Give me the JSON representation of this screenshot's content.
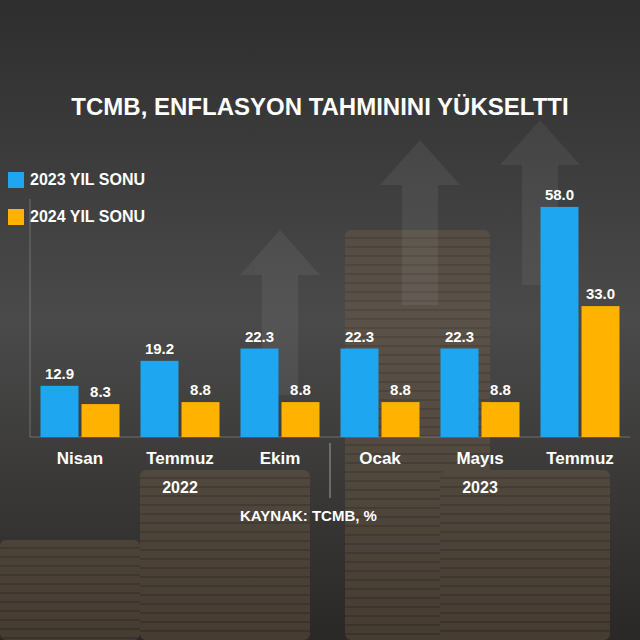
{
  "chart_data": {
    "type": "bar",
    "title": "TCMB, ENFLASYON TAHMININI YÜKSELTTI",
    "source": "KAYNAK: TCMB, %",
    "categories": [
      "Nisan",
      "Temmuz",
      "Ekim",
      "Ocak",
      "Mayıs",
      "Temmuz"
    ],
    "x_groups": [
      {
        "label": "2022",
        "size": 3
      },
      {
        "label": "2023",
        "size": 3
      }
    ],
    "series": [
      {
        "name": "2023 YIL SONU",
        "color": "#1ea7f0",
        "values": [
          12.9,
          19.2,
          22.3,
          22.3,
          22.3,
          58
        ],
        "value_labels": [
          "12.9",
          "19.2",
          "22.3",
          "22.3",
          "22.3",
          "58.0"
        ]
      },
      {
        "name": "2024 YIL SONU",
        "color": "#ffb300",
        "values": [
          8.3,
          8.8,
          8.8,
          8.8,
          8.8,
          33
        ],
        "value_labels": [
          "8.3",
          "8.8",
          "8.8",
          "8.8",
          "8.8",
          "33.0"
        ]
      }
    ],
    "ylim": [
      0,
      60
    ],
    "yticks": [],
    "grid": false,
    "legend": "top-left",
    "data_labels": true,
    "tick_labels": "x"
  }
}
